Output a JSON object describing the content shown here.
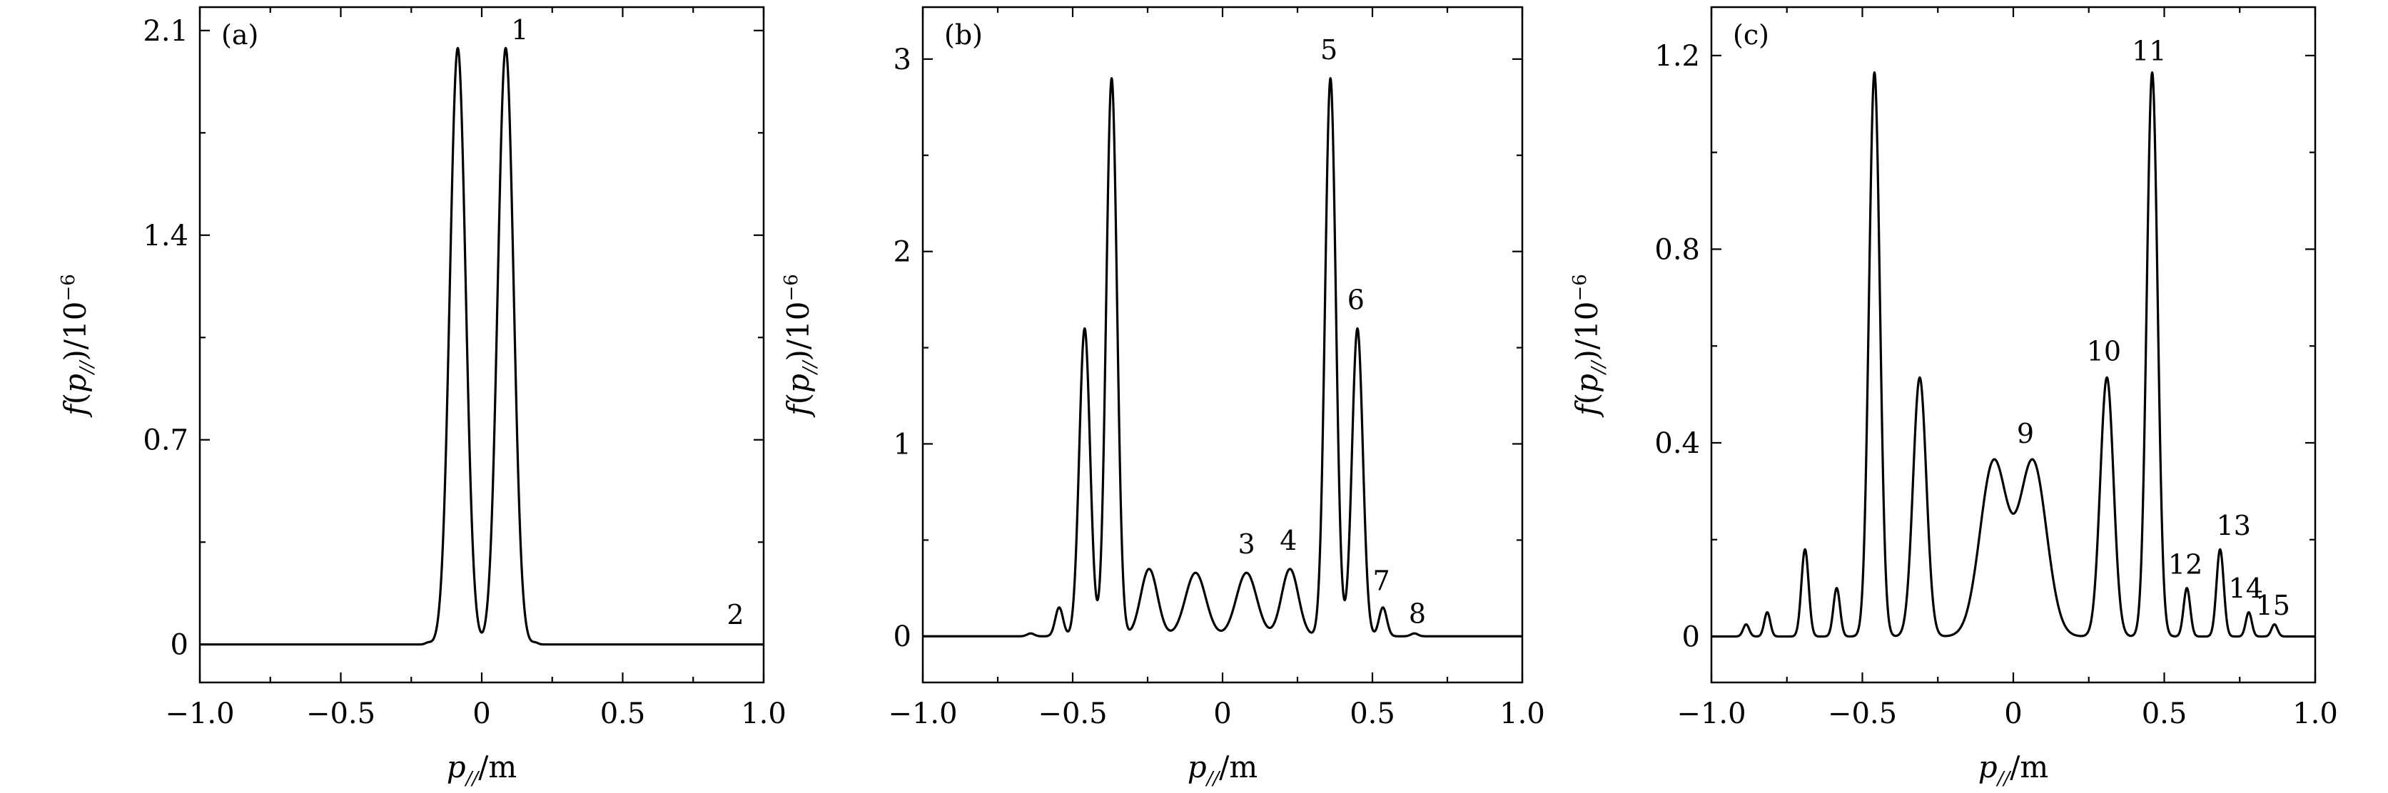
{
  "chart_data": [
    {
      "type": "line",
      "panel": "(a)",
      "xlabel": "p///m",
      "ylabel": "f(p//)/10−6",
      "xlim": [
        -1.0,
        1.0
      ],
      "ylim": [
        -0.13,
        2.18
      ],
      "xticks": [
        -1.0,
        -0.5,
        0,
        0.5,
        1.0
      ],
      "xtick_labels": [
        "−1.0",
        "−0.5",
        "0",
        "0.5",
        "1.0"
      ],
      "yticks": [
        0,
        0.7,
        1.4,
        2.1
      ],
      "ytick_labels": [
        "0",
        "0.7",
        "1.4",
        "2.1"
      ],
      "peaks": [
        {
          "x": -0.085,
          "y": 2.04,
          "w": 0.028
        },
        {
          "x": 0.085,
          "y": 2.04,
          "w": 0.028
        },
        {
          "x": -0.19,
          "y": 0.006,
          "w": 0.01
        },
        {
          "x": 0.19,
          "y": 0.006,
          "w": 0.01
        }
      ],
      "annotations": [
        {
          "text": "1",
          "x": 0.135,
          "y": 2.07
        },
        {
          "text": "2",
          "x": 0.9,
          "y": 0.07
        }
      ]
    },
    {
      "type": "line",
      "panel": "(b)",
      "xlabel": "p///m",
      "ylabel": "f(p//)/10−6",
      "xlim": [
        -1.0,
        1.0
      ],
      "ylim": [
        -0.24,
        3.27
      ],
      "xticks": [
        -1.0,
        -0.5,
        0,
        0.5,
        1.0
      ],
      "xtick_labels": [
        "−1.0",
        "−0.5",
        "0",
        "0.5",
        "1.0"
      ],
      "yticks": [
        0,
        1,
        2,
        3
      ],
      "ytick_labels": [
        "0",
        "1",
        "2",
        "3"
      ],
      "peaks": [
        {
          "x": -0.545,
          "y": 0.15,
          "w": 0.013
        },
        {
          "x": -0.46,
          "y": 1.6,
          "w": 0.018
        },
        {
          "x": -0.37,
          "y": 2.9,
          "w": 0.018
        },
        {
          "x": -0.245,
          "y": 0.35,
          "w": 0.028
        },
        {
          "x": -0.09,
          "y": 0.33,
          "w": 0.034
        },
        {
          "x": 0.08,
          "y": 0.33,
          "w": 0.034
        },
        {
          "x": 0.225,
          "y": 0.35,
          "w": 0.028
        },
        {
          "x": 0.36,
          "y": 2.9,
          "w": 0.018
        },
        {
          "x": 0.45,
          "y": 1.6,
          "w": 0.018
        },
        {
          "x": 0.535,
          "y": 0.15,
          "w": 0.013
        },
        {
          "x": 0.64,
          "y": 0.015,
          "w": 0.012
        },
        {
          "x": -0.64,
          "y": 0.015,
          "w": 0.012
        }
      ],
      "annotations": [
        {
          "text": "3",
          "x": 0.08,
          "y": 0.43
        },
        {
          "text": "4",
          "x": 0.22,
          "y": 0.45
        },
        {
          "text": "5",
          "x": 0.355,
          "y": 3.0
        },
        {
          "text": "6",
          "x": 0.445,
          "y": 1.7
        },
        {
          "text": "7",
          "x": 0.53,
          "y": 0.24
        },
        {
          "text": "8",
          "x": 0.65,
          "y": 0.07
        }
      ]
    },
    {
      "type": "line",
      "panel": "(c)",
      "xlabel": "p///m",
      "ylabel": "f(p//)/10−6",
      "xlim": [
        -1.0,
        1.0
      ],
      "ylim": [
        -0.095,
        1.3
      ],
      "xticks": [
        -1.0,
        -0.5,
        0,
        0.5,
        1.0
      ],
      "xtick_labels": [
        "−1.0",
        "−0.5",
        "0",
        "0.5",
        "1.0"
      ],
      "yticks": [
        0,
        0.4,
        0.8,
        1.2
      ],
      "ytick_labels": [
        "0",
        "0.4",
        "0.8",
        "1.2"
      ],
      "peaks": [
        {
          "x": -0.885,
          "y": 0.025,
          "w": 0.01
        },
        {
          "x": -0.815,
          "y": 0.05,
          "w": 0.01
        },
        {
          "x": -0.69,
          "y": 0.18,
          "w": 0.012
        },
        {
          "x": -0.585,
          "y": 0.1,
          "w": 0.011
        },
        {
          "x": -0.46,
          "y": 1.165,
          "w": 0.018
        },
        {
          "x": -0.31,
          "y": 0.535,
          "w": 0.022
        },
        {
          "x": -0.065,
          "y": 0.36,
          "w": 0.045
        },
        {
          "x": 0.065,
          "y": 0.36,
          "w": 0.045
        },
        {
          "x": 0.31,
          "y": 0.535,
          "w": 0.022
        },
        {
          "x": 0.46,
          "y": 1.165,
          "w": 0.018
        },
        {
          "x": 0.575,
          "y": 0.1,
          "w": 0.011
        },
        {
          "x": 0.685,
          "y": 0.18,
          "w": 0.012
        },
        {
          "x": 0.78,
          "y": 0.05,
          "w": 0.01
        },
        {
          "x": 0.865,
          "y": 0.025,
          "w": 0.01
        }
      ],
      "annotations": [
        {
          "text": "9",
          "x": 0.04,
          "y": 0.4
        },
        {
          "text": "10",
          "x": 0.3,
          "y": 0.57
        },
        {
          "text": "11",
          "x": 0.45,
          "y": 1.19
        },
        {
          "text": "12",
          "x": 0.57,
          "y": 0.13
        },
        {
          "text": "13",
          "x": 0.73,
          "y": 0.21
        },
        {
          "text": "14",
          "x": 0.77,
          "y": 0.08
        },
        {
          "text": "15",
          "x": 0.86,
          "y": 0.045
        }
      ]
    }
  ]
}
